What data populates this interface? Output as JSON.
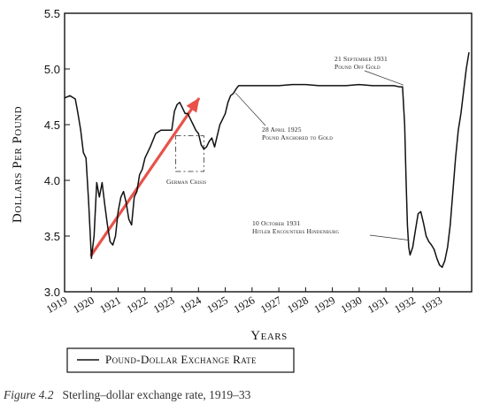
{
  "chart_data": {
    "type": "line",
    "xlabel": "Years",
    "ylabel": "Dollars Per Pound",
    "ylim": [
      3.0,
      5.5
    ],
    "xlim": [
      1919,
      1934.2
    ],
    "yticks": [
      "3.0",
      "3.5",
      "4.0",
      "4.5",
      "5.0",
      "5.5"
    ],
    "ytick_values": [
      3.0,
      3.5,
      4.0,
      4.5,
      5.0,
      5.5
    ],
    "xticks": [
      "1919",
      "1920",
      "1921",
      "1922",
      "1923",
      "1924",
      "1925",
      "1926",
      "1927",
      "1928",
      "1929",
      "1930",
      "1931",
      "1932",
      "1933"
    ],
    "xtick_values": [
      1919,
      1920,
      1921,
      1922,
      1923,
      1924,
      1925,
      1926,
      1927,
      1928,
      1929,
      1930,
      1931,
      1932,
      1933
    ],
    "series": [
      {
        "name": "Pound-Dollar Exchange Rate",
        "x": [
          1919.0,
          1919.2,
          1919.4,
          1919.5,
          1919.6,
          1919.7,
          1919.8,
          1919.9,
          1920.0,
          1920.1,
          1920.2,
          1920.3,
          1920.4,
          1920.5,
          1920.6,
          1920.7,
          1920.8,
          1920.9,
          1921.0,
          1921.1,
          1921.2,
          1921.3,
          1921.4,
          1921.5,
          1921.6,
          1921.7,
          1921.8,
          1921.9,
          1922.0,
          1922.2,
          1922.4,
          1922.6,
          1922.8,
          1923.0,
          1923.1,
          1923.2,
          1923.3,
          1923.4,
          1923.5,
          1923.6,
          1923.7,
          1923.8,
          1923.9,
          1924.0,
          1924.1,
          1924.2,
          1924.3,
          1924.4,
          1924.5,
          1924.6,
          1924.7,
          1924.8,
          1924.9,
          1925.0,
          1925.1,
          1925.2,
          1925.3,
          1925.4,
          1925.5,
          1925.7,
          1926.0,
          1926.5,
          1927.0,
          1927.5,
          1928.0,
          1928.5,
          1929.0,
          1929.5,
          1930.0,
          1930.5,
          1931.0,
          1931.3,
          1931.5,
          1931.62,
          1931.7,
          1931.75,
          1931.8,
          1931.85,
          1931.9,
          1932.0,
          1932.1,
          1932.2,
          1932.3,
          1932.4,
          1932.5,
          1932.6,
          1932.7,
          1932.8,
          1932.9,
          1933.0,
          1933.1,
          1933.2,
          1933.3,
          1933.4,
          1933.5,
          1933.6,
          1933.7,
          1933.8,
          1933.9,
          1934.0,
          1934.1
        ],
        "values": [
          4.74,
          4.76,
          4.73,
          4.6,
          4.45,
          4.25,
          4.2,
          3.8,
          3.3,
          3.5,
          3.98,
          3.85,
          3.98,
          3.78,
          3.6,
          3.45,
          3.42,
          3.5,
          3.72,
          3.85,
          3.9,
          3.8,
          3.65,
          3.6,
          3.85,
          3.9,
          4.05,
          4.1,
          4.2,
          4.3,
          4.42,
          4.45,
          4.45,
          4.45,
          4.62,
          4.68,
          4.7,
          4.65,
          4.6,
          4.6,
          4.55,
          4.5,
          4.45,
          4.42,
          4.32,
          4.28,
          4.3,
          4.35,
          4.38,
          4.3,
          4.4,
          4.5,
          4.55,
          4.6,
          4.7,
          4.76,
          4.78,
          4.82,
          4.85,
          4.85,
          4.85,
          4.85,
          4.85,
          4.86,
          4.86,
          4.85,
          4.85,
          4.85,
          4.86,
          4.85,
          4.85,
          4.85,
          4.84,
          4.84,
          4.5,
          4.0,
          3.6,
          3.4,
          3.33,
          3.4,
          3.55,
          3.7,
          3.72,
          3.62,
          3.5,
          3.45,
          3.42,
          3.38,
          3.3,
          3.24,
          3.22,
          3.28,
          3.4,
          3.6,
          3.9,
          4.2,
          4.45,
          4.6,
          4.8,
          5.0,
          5.15
        ]
      }
    ],
    "annotations": [
      {
        "text": "21 September 1931 Pound Off Gold",
        "lines": [
          "21 September 1931",
          "Pound Off Gold"
        ],
        "x": 1931.72,
        "y": 4.84
      },
      {
        "text": "28 April 1925 Pound Anchored to Gold",
        "lines": [
          "28 April 1925",
          "Pound Anchored to Gold"
        ],
        "x": 1925.32,
        "y": 4.8
      },
      {
        "text": "German Crisis",
        "lines": [
          "German Crisis"
        ],
        "x": 1923.7,
        "y": 4.2
      },
      {
        "text": "10 October 1931 Hitler Encounters Hindenburg",
        "lines": [
          "10 October 1931",
          "Hitler Encounters Hindenburg"
        ],
        "x": 1931.9,
        "y": 3.4
      }
    ],
    "trend_arrow": {
      "x1": 1920.0,
      "y1": 3.33,
      "x2": 1924.0,
      "y2": 4.73,
      "color": "#e8524a"
    },
    "crisis_box": {
      "x1": 1923.15,
      "x2": 1924.2,
      "y1": 4.08,
      "y2": 4.4
    },
    "legend": {
      "label": "Pound-Dollar Exchange Rate",
      "placement": "bottom-left"
    },
    "grid": false
  },
  "caption": {
    "label": "Figure 4.2",
    "text": "Sterling–dollar exchange rate, 1919–33"
  },
  "colors": {
    "line": "#111111",
    "arrow": "#e8524a",
    "axis": "#111111"
  }
}
